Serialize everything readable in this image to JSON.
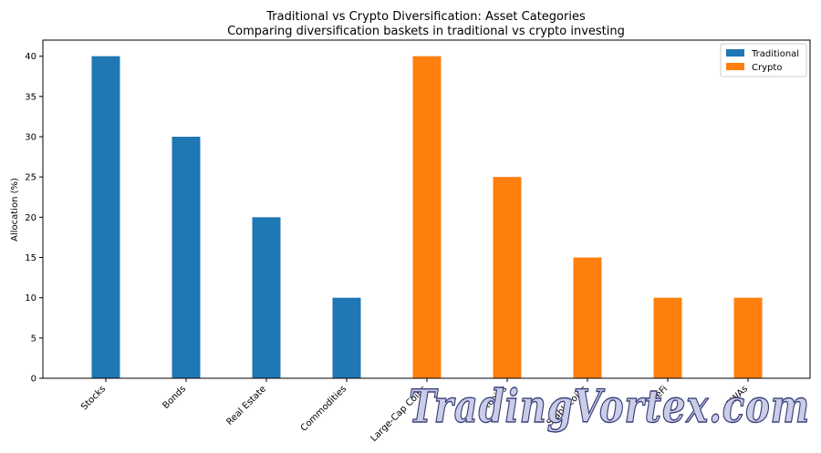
{
  "chart_data": {
    "type": "bar",
    "title": "Traditional vs Crypto Diversification: Asset Categories",
    "subtitle": "Comparing diversification baskets in traditional vs crypto investing",
    "xlabel": "",
    "ylabel": "Allocation (%)",
    "ylim": [
      0,
      42
    ],
    "yticks": [
      0,
      5,
      10,
      15,
      20,
      25,
      30,
      35,
      40
    ],
    "grid": false,
    "legend_position": "top-right",
    "categories": [
      "Stocks",
      "Bonds",
      "Real Estate",
      "Commodities",
      "Large-Cap Coins",
      "Altcoins",
      "Stablecoins",
      "DeFi",
      "RWAs"
    ],
    "series": [
      {
        "name": "Traditional",
        "color": "#1f77b4",
        "values": [
          40,
          30,
          20,
          10,
          0,
          0,
          0,
          0,
          0
        ]
      },
      {
        "name": "Crypto",
        "color": "#ff7f0e",
        "values": [
          0,
          0,
          0,
          0,
          40,
          25,
          15,
          10,
          10
        ]
      }
    ]
  },
  "watermark": "TradingVortex.com"
}
